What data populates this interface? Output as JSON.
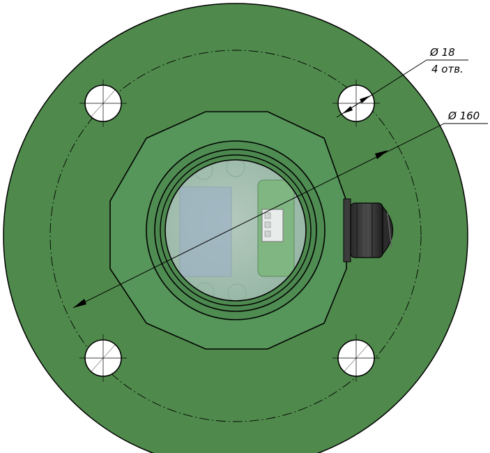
{
  "drawing": {
    "annotations": {
      "hole_diameter": "Ø 18",
      "hole_count": "4 отв.",
      "bolt_circle_diameter": "Ø 160"
    },
    "colors": {
      "flange": "#4f8a4c",
      "hub": "#56965a",
      "window_glass": "#a8c1b5",
      "pcb": "#7fb682",
      "gland": "#2d2d2d",
      "line": "#000000"
    }
  }
}
